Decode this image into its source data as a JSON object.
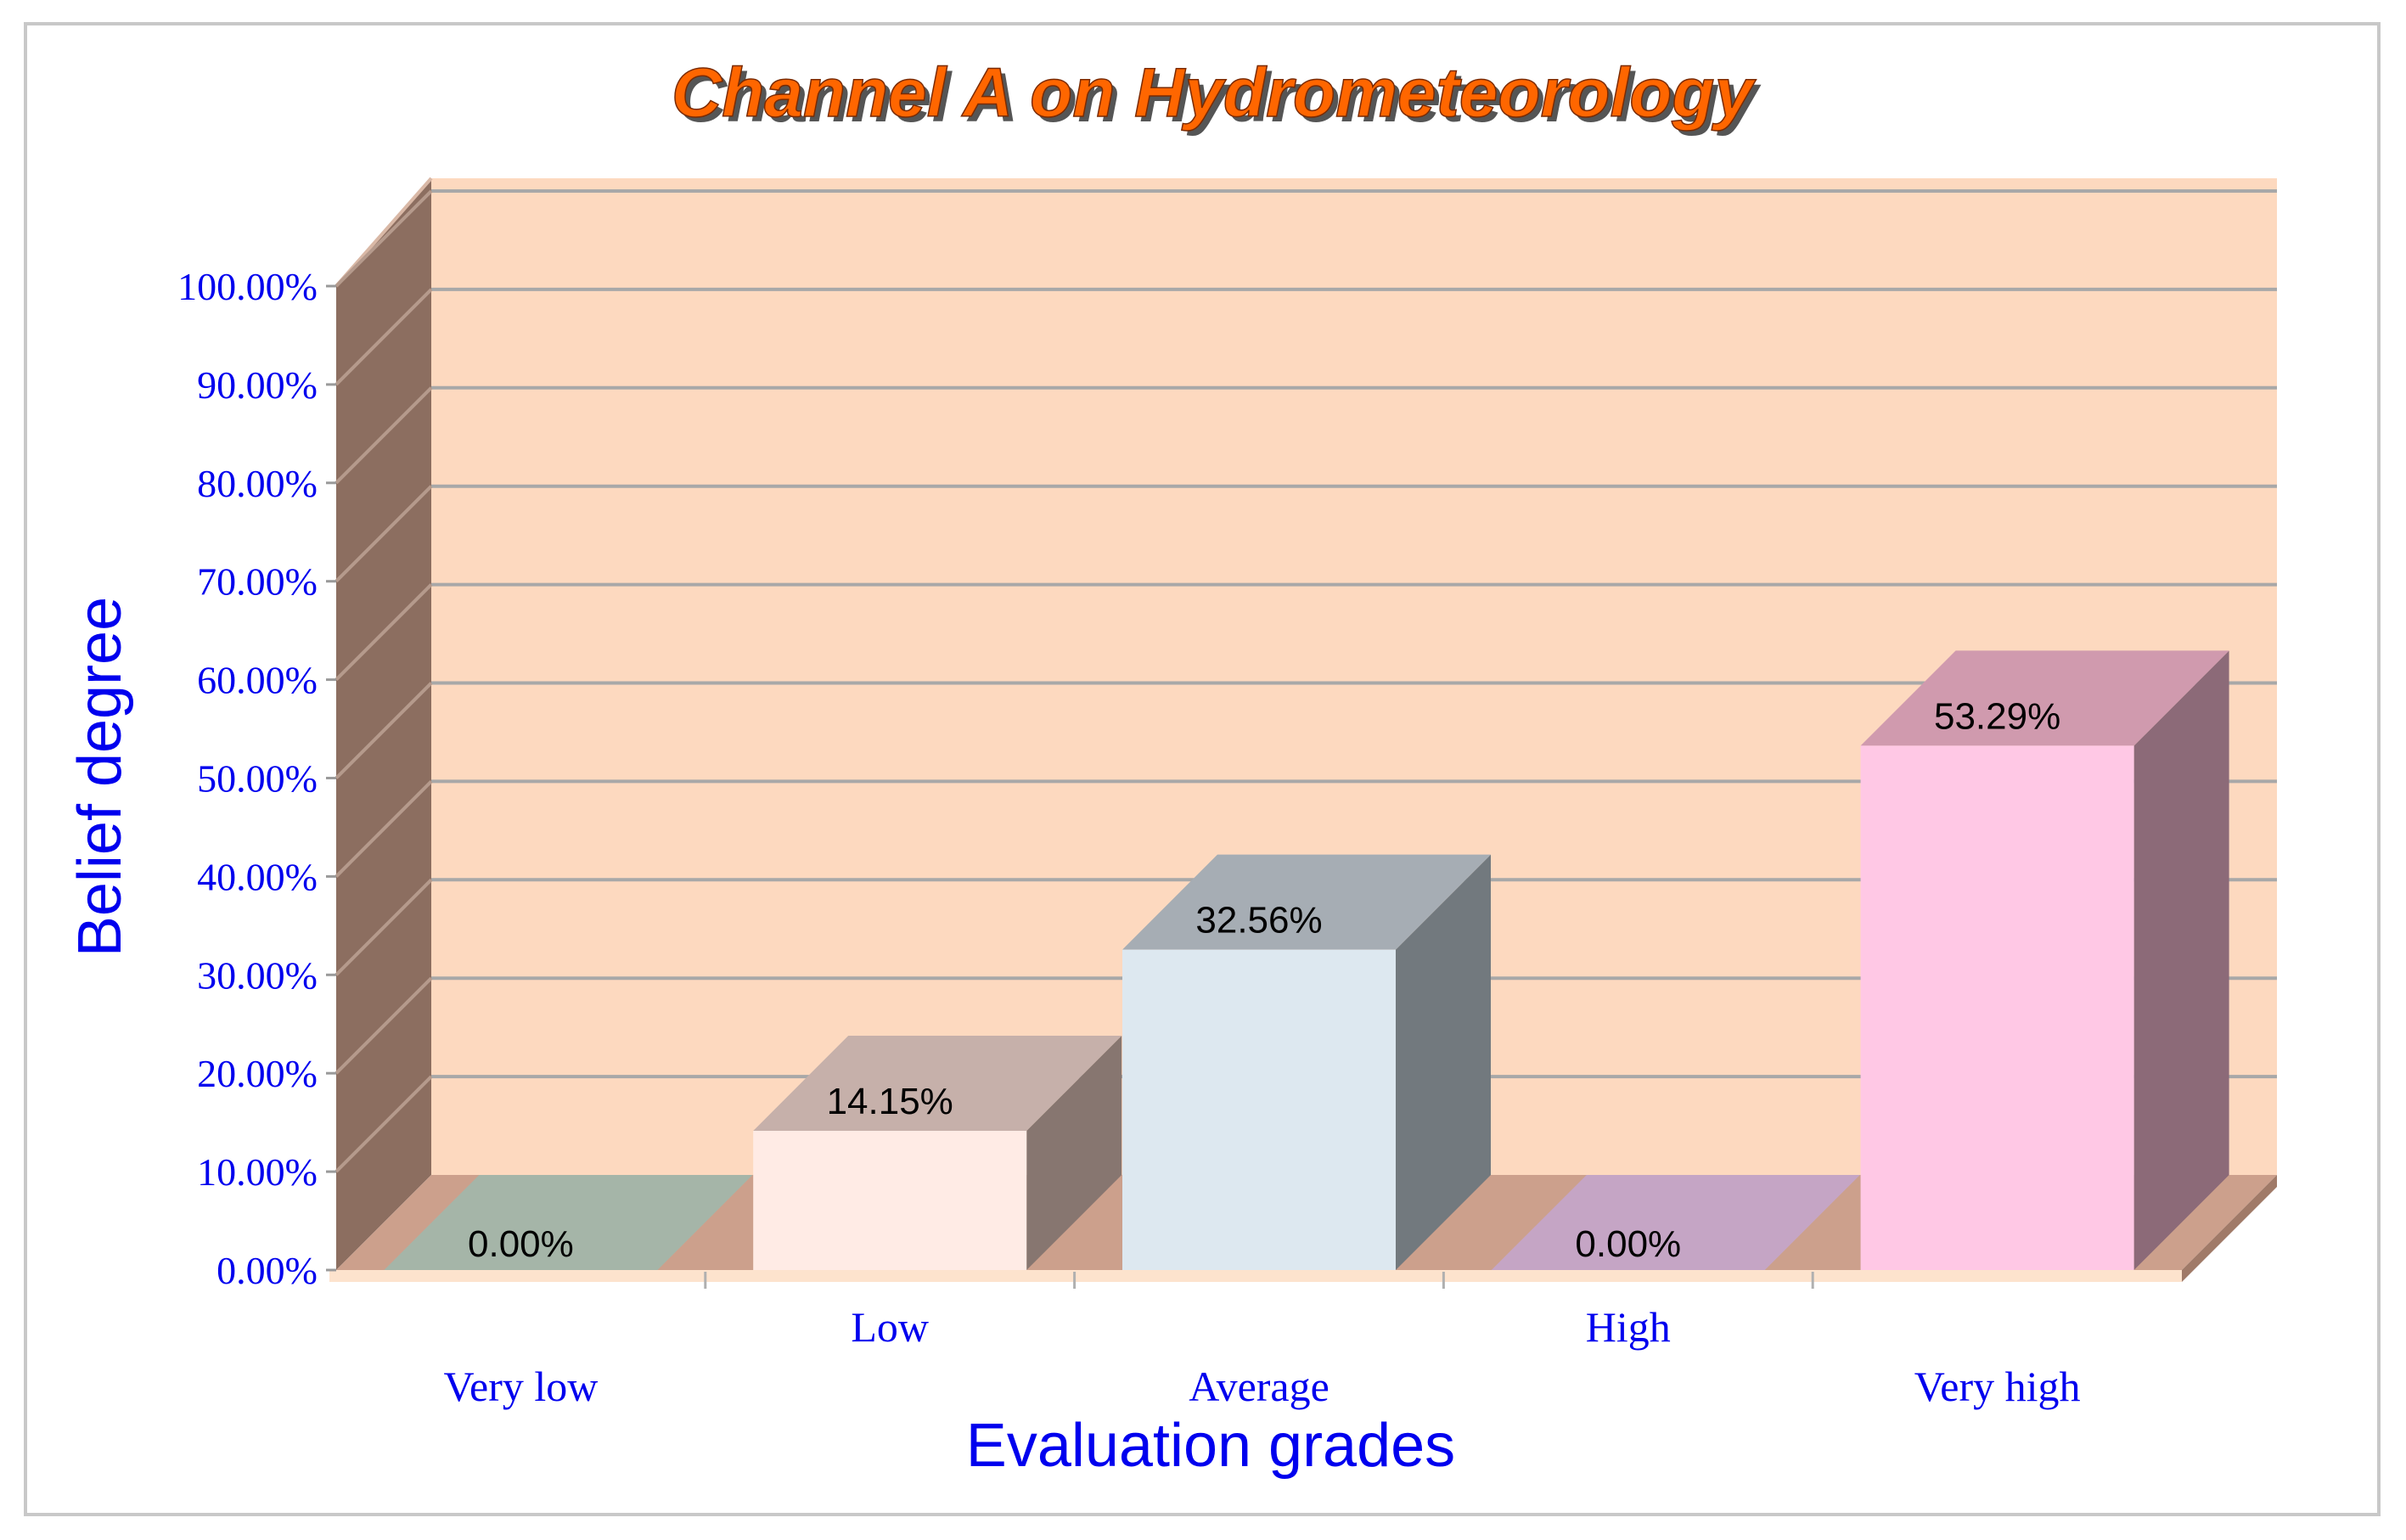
{
  "chart_data": {
    "type": "bar",
    "title": "Channel A on Hydrometeorology",
    "xlabel": "Evaluation grades",
    "ylabel": "Belief degree",
    "categories": [
      "Very low",
      "Low",
      "Average",
      "High",
      "Very high"
    ],
    "values": [
      0.0,
      14.15,
      32.56,
      0.0,
      53.29
    ],
    "data_labels": [
      "0.00%",
      "14.15%",
      "32.56%",
      "0.00%",
      "53.29%"
    ],
    "ylim": [
      0,
      100
    ],
    "yticks": [
      "0.00%",
      "10.00%",
      "20.00%",
      "30.00%",
      "40.00%",
      "50.00%",
      "60.00%",
      "70.00%",
      "80.00%",
      "90.00%",
      "100.00%"
    ],
    "grid": true,
    "style": "3d",
    "colors": {
      "background": "#fdd9bf",
      "side_wall": "#8c6e60",
      "floor": "#cca08c",
      "gridline": "#a8a8a8",
      "bar_front": [
        "#a5b5a8",
        "#ffebe5",
        "#dde8f0",
        "#c5a5c5",
        "#ffc8e5"
      ],
      "bar_top": [
        "#a5b5a8",
        "#c6b0aa",
        "#a6adb4",
        "#c5a5c5",
        "#d09aae"
      ],
      "bar_side": [
        "#7f8c82",
        "#877670",
        "#72797e",
        "#9a819a",
        "#8c6a78"
      ]
    }
  }
}
